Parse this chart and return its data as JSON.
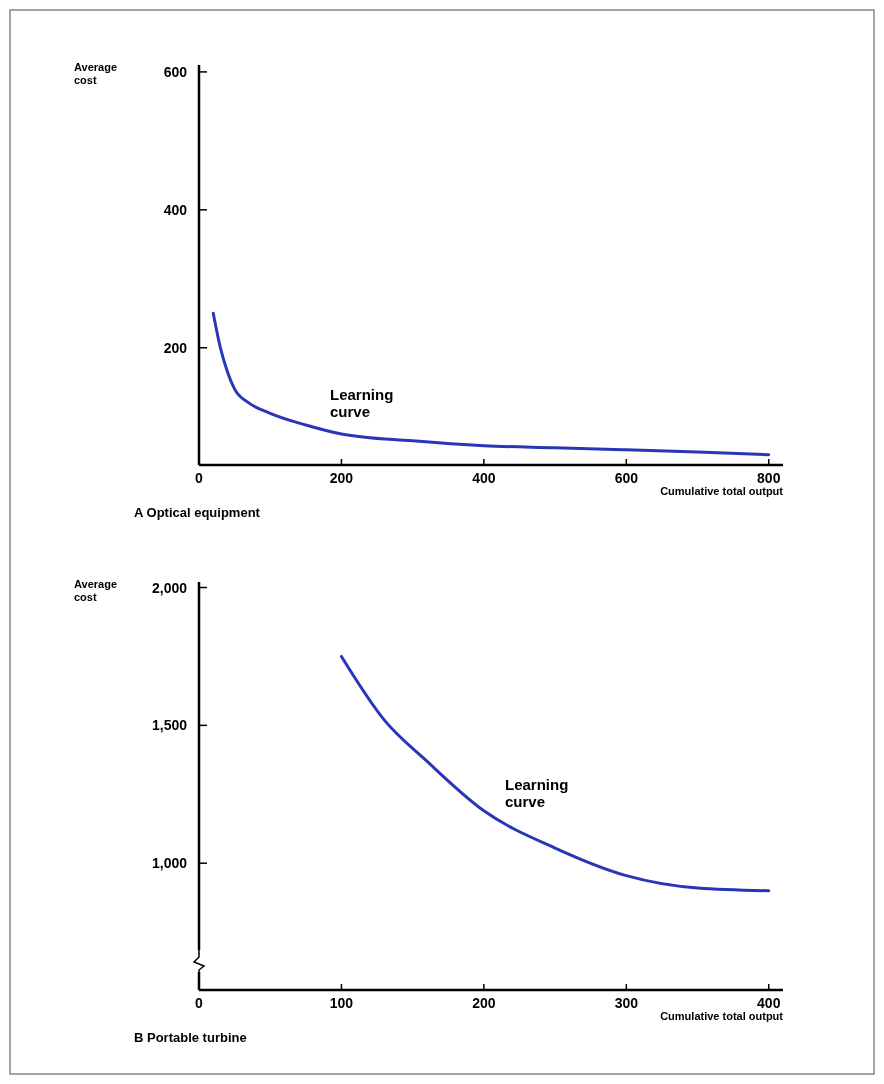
{
  "chart_data": [
    {
      "type": "line",
      "title": "A  Optical equipment",
      "xlabel": "Cumulative total output",
      "ylabel": "Average cost",
      "x": [
        20,
        30,
        40,
        50,
        70,
        100,
        150,
        200,
        300,
        400,
        500,
        600,
        700,
        800
      ],
      "series": [
        {
          "color": "#2a36b8",
          "values": [
            250,
            200,
            165,
            140,
            120,
            105,
            88,
            75,
            65,
            58,
            55,
            52,
            49,
            45
          ]
        }
      ],
      "xlim": [
        0,
        820
      ],
      "ylim": [
        30,
        610
      ],
      "xticks": [
        0,
        200,
        400,
        600,
        800
      ],
      "yticks": [
        200,
        400,
        600
      ],
      "grid": false,
      "marker": "none",
      "line_style": "solid",
      "annotations": [
        "Learning curve"
      ]
    },
    {
      "type": "line",
      "title": "B  Portable turbine",
      "xlabel": "Cumulative total output",
      "ylabel": "Average cost",
      "x": [
        100,
        130,
        160,
        200,
        250,
        300,
        350,
        400
      ],
      "series": [
        {
          "color": "#2a36b8",
          "values": [
            1750,
            1520,
            1370,
            1190,
            1055,
            955,
            910,
            900
          ]
        }
      ],
      "xlim": [
        0,
        410
      ],
      "ylim": [
        540,
        2020
      ],
      "xticks": [
        0,
        100,
        200,
        300,
        400
      ],
      "yticks": [
        {
          "value": 1000,
          "label": "1,000"
        },
        {
          "value": 1500,
          "label": "1,500"
        },
        {
          "value": 2000,
          "label": "2,000"
        }
      ],
      "grid": false,
      "marker": "none",
      "line_style": "solid",
      "annotations": [
        "Learning curve"
      ]
    }
  ]
}
